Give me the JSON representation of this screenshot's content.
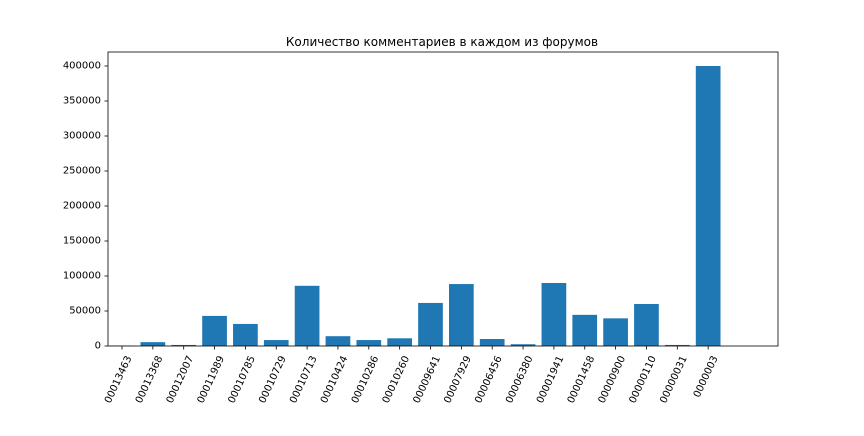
{
  "chart_data": {
    "type": "bar",
    "title": "Количество комментариев в каждом из форумов",
    "xlabel": "",
    "ylabel": "",
    "categories": [
      "00013463",
      "00013368",
      "00012007",
      "00011989",
      "00010785",
      "00010729",
      "00010713",
      "00010424",
      "00010286",
      "00010260",
      "00009641",
      "00007929",
      "00006456",
      "00006380",
      "00001941",
      "00001458",
      "00000900",
      "00000110",
      "00000031",
      "0000003"
    ],
    "values": [
      500,
      5500,
      1500,
      43000,
      31500,
      8500,
      86000,
      14000,
      8500,
      11000,
      61500,
      88500,
      10000,
      2500,
      90000,
      44500,
      39500,
      60000,
      1500,
      400000
    ],
    "ylim": [
      0,
      420000
    ],
    "yticks": [
      0,
      50000,
      100000,
      150000,
      200000,
      250000,
      300000,
      350000,
      400000
    ],
    "bar_color": "#1f77b4",
    "grid": false
  }
}
